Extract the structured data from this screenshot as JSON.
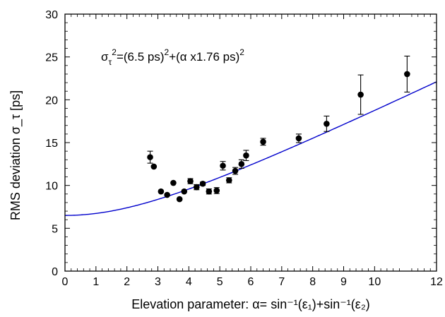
{
  "chart_data": {
    "type": "scatter",
    "title": "",
    "xlabel": "Elevation parameter: α= sin⁻¹(ε₁)+sin⁻¹(ε₂)",
    "ylabel": "RMS deviation σ_τ [ps]",
    "xlim": [
      0,
      12
    ],
    "ylim": [
      0,
      30
    ],
    "x_ticks": [
      "0",
      "1",
      "2",
      "3",
      "4",
      "5",
      "6",
      "7",
      "8",
      "9",
      "10",
      "12"
    ],
    "x_tick_values": [
      0,
      1,
      2,
      3,
      4,
      5,
      6,
      7,
      8,
      9,
      10,
      12
    ],
    "y_ticks": [
      "0",
      "5",
      "10",
      "15",
      "20",
      "25",
      "30"
    ],
    "y_tick_values": [
      0,
      5,
      10,
      15,
      20,
      25,
      30
    ],
    "grid": false,
    "annotation": {
      "sigma": "σ",
      "sub": "τ",
      "sup1": "2",
      "part1": "=(6.5 ps)",
      "sup2": "2",
      "part2": "+(α x1.76 ps)",
      "sup3": "2"
    },
    "formula": {
      "a_ps": 6.5,
      "b_ps": 1.76
    },
    "colors": {
      "fit_line": "#0000cc",
      "points": "#000000"
    },
    "series": [
      {
        "type": "scatter_errorbar",
        "points": [
          {
            "x": 2.75,
            "y": 13.3,
            "err": 0.7
          },
          {
            "x": 2.87,
            "y": 12.2,
            "err": 0.0
          },
          {
            "x": 3.1,
            "y": 9.3,
            "err": 0.0
          },
          {
            "x": 3.3,
            "y": 8.9,
            "err": 0.0
          },
          {
            "x": 3.5,
            "y": 10.3,
            "err": 0.0
          },
          {
            "x": 3.7,
            "y": 8.4,
            "err": 0.0
          },
          {
            "x": 3.85,
            "y": 9.3,
            "err": 0.0
          },
          {
            "x": 4.05,
            "y": 10.5,
            "err": 0.3
          },
          {
            "x": 4.25,
            "y": 9.8,
            "err": 0.3
          },
          {
            "x": 4.45,
            "y": 10.2,
            "err": 0.2
          },
          {
            "x": 4.65,
            "y": 9.3,
            "err": 0.3
          },
          {
            "x": 4.9,
            "y": 9.4,
            "err": 0.35
          },
          {
            "x": 5.1,
            "y": 12.3,
            "err": 0.5
          },
          {
            "x": 5.3,
            "y": 10.6,
            "err": 0.3
          },
          {
            "x": 5.5,
            "y": 11.7,
            "err": 0.4
          },
          {
            "x": 5.7,
            "y": 12.5,
            "err": 0.5
          },
          {
            "x": 5.85,
            "y": 13.5,
            "err": 0.6
          },
          {
            "x": 6.4,
            "y": 15.1,
            "err": 0.4
          },
          {
            "x": 7.55,
            "y": 15.5,
            "err": 0.5
          },
          {
            "x": 8.45,
            "y": 17.2,
            "err": 0.9
          },
          {
            "x": 9.55,
            "y": 20.6,
            "err": 2.3
          },
          {
            "x": 11.05,
            "y": 23.0,
            "err": 2.1
          }
        ]
      },
      {
        "type": "line",
        "function": "sqrt(6.5^2 + (1.76*x)^2)"
      }
    ]
  }
}
